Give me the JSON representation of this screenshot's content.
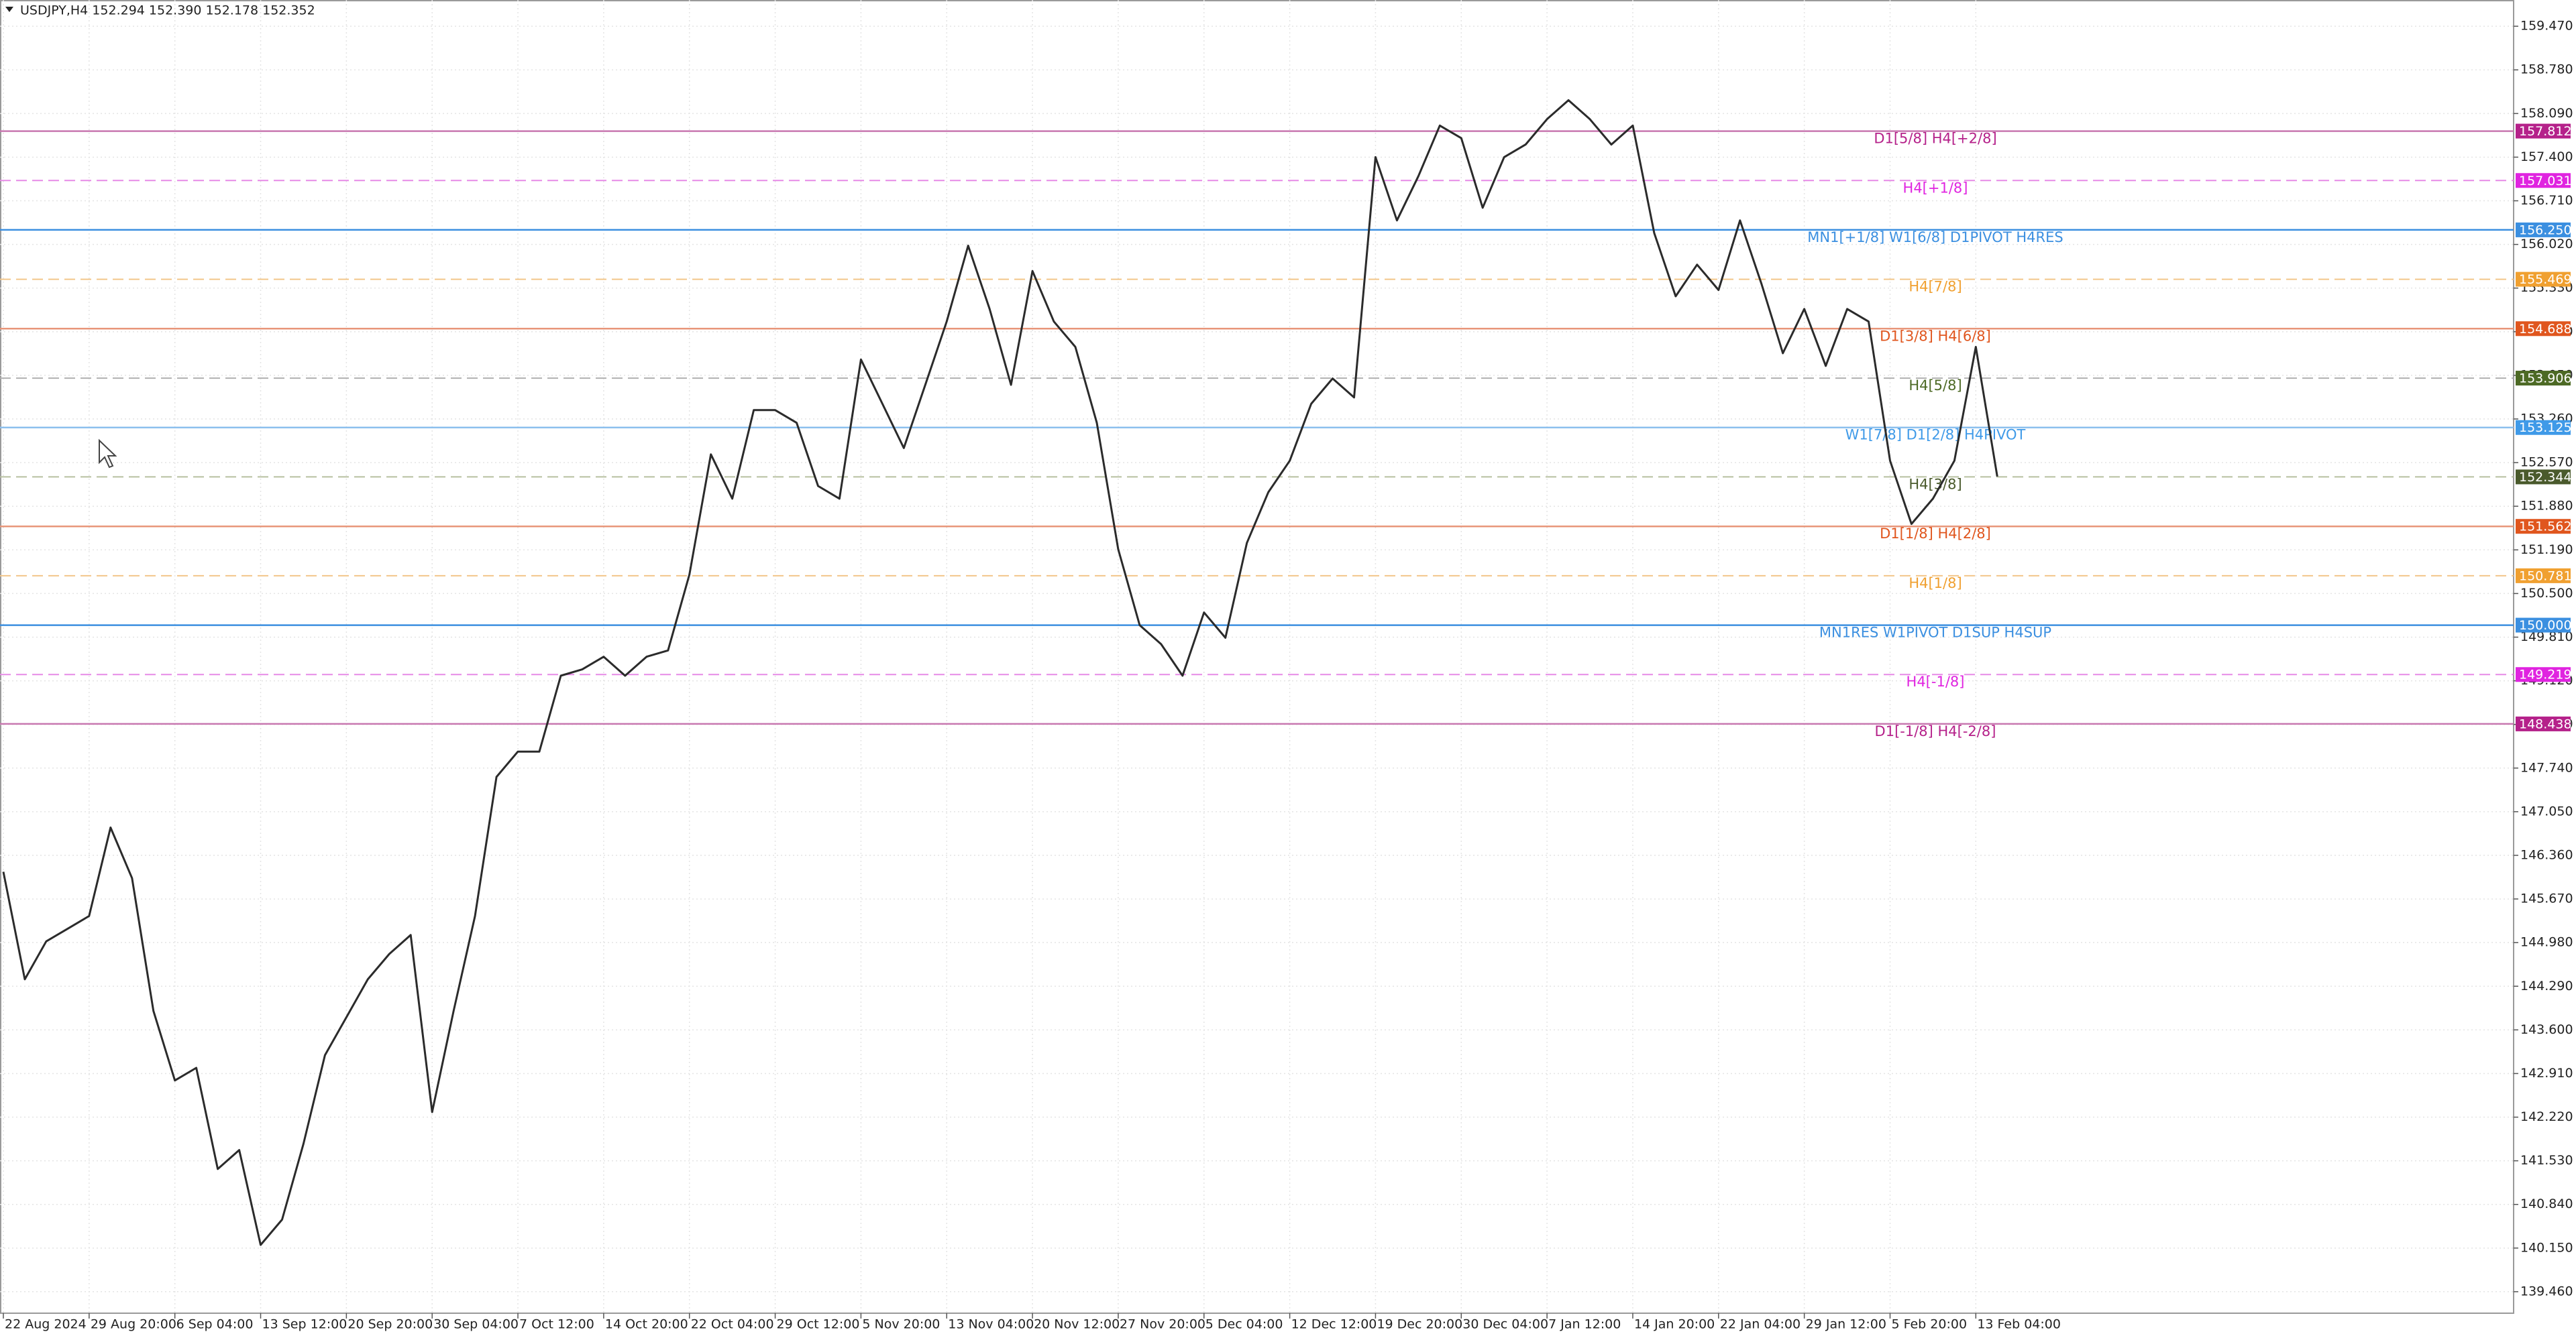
{
  "chart_data": {
    "type": "line",
    "title": "USDJPY,H4  152.294 152.390 152.178 152.352",
    "color": "#2b2b2b",
    "grid": true,
    "categories": [
      "22 Aug 2024",
      null,
      null,
      null,
      "29 Aug 20:00",
      null,
      null,
      null,
      "6 Sep 04:00",
      null,
      null,
      null,
      "13 Sep 12:00",
      null,
      null,
      null,
      "20 Sep 20:00",
      null,
      null,
      null,
      "30 Sep 04:00",
      null,
      null,
      null,
      "7 Oct 12:00",
      null,
      null,
      null,
      "14 Oct 20:00",
      null,
      null,
      null,
      "22 Oct 04:00",
      null,
      null,
      null,
      "29 Oct 12:00",
      null,
      null,
      null,
      "5 Nov 20:00",
      null,
      null,
      null,
      "13 Nov 04:00",
      null,
      null,
      null,
      "20 Nov 12:00",
      null,
      null,
      null,
      "27 Nov 20:00",
      null,
      null,
      null,
      "5 Dec 04:00",
      null,
      null,
      null,
      "12 Dec 12:00",
      null,
      null,
      null,
      "19 Dec 20:00",
      null,
      null,
      null,
      "30 Dec 04:00",
      null,
      null,
      null,
      "7 Jan 12:00",
      null,
      null,
      null,
      "14 Jan 20:00",
      null,
      null,
      null,
      "22 Jan 04:00",
      null,
      null,
      null,
      "29 Jan 12:00",
      null,
      null,
      null,
      "5 Feb 20:00",
      null,
      null,
      null,
      "13 Feb 04:00",
      null
    ],
    "values": [
      146.1,
      144.4,
      145.0,
      145.2,
      145.4,
      146.8,
      146.0,
      143.9,
      142.8,
      143.0,
      141.4,
      141.7,
      140.2,
      140.6,
      141.8,
      143.2,
      143.8,
      144.4,
      144.8,
      145.1,
      142.3,
      143.9,
      145.4,
      147.6,
      148.0,
      148.0,
      149.2,
      149.3,
      149.5,
      149.2,
      149.5,
      149.6,
      150.8,
      152.7,
      152.0,
      153.4,
      153.4,
      153.2,
      152.2,
      152.0,
      154.2,
      153.5,
      152.8,
      153.8,
      154.8,
      156.0,
      155.0,
      153.8,
      155.6,
      154.8,
      154.4,
      153.2,
      151.2,
      150.0,
      149.7,
      149.2,
      150.2,
      149.8,
      151.3,
      152.1,
      152.6,
      153.5,
      153.9,
      153.6,
      157.4,
      156.4,
      157.1,
      157.9,
      157.7,
      156.6,
      157.4,
      157.6,
      158.0,
      158.3,
      158.0,
      157.6,
      157.9,
      156.2,
      155.2,
      155.7,
      155.3,
      156.4,
      155.4,
      154.3,
      155.0,
      154.1,
      155.0,
      154.8,
      152.6,
      151.6,
      152.0,
      152.6,
      154.4,
      152.35
    ],
    "ylim": [
      139.12,
      159.885
    ],
    "yticks": [
      {
        "value": 159.47,
        "label": "159.470"
      },
      {
        "value": 158.78,
        "label": "158.780"
      },
      {
        "value": 158.09,
        "label": "158.090"
      },
      {
        "value": 157.4,
        "label": "157.400"
      },
      {
        "value": 156.71,
        "label": "156.710"
      },
      {
        "value": 156.02,
        "label": "156.020"
      },
      {
        "value": 155.33,
        "label": "155.330"
      },
      {
        "value": 154.64,
        "label": "154.640"
      },
      {
        "value": 153.95,
        "label": "153.950"
      },
      {
        "value": 153.26,
        "label": "153.260"
      },
      {
        "value": 152.57,
        "label": "152.570"
      },
      {
        "value": 151.88,
        "label": "151.880"
      },
      {
        "value": 151.19,
        "label": "151.190"
      },
      {
        "value": 150.5,
        "label": "150.500"
      },
      {
        "value": 149.81,
        "label": "149.810"
      },
      {
        "value": 149.12,
        "label": "149.120"
      },
      {
        "value": 148.43,
        "label": "148.430"
      },
      {
        "value": 147.74,
        "label": "147.740"
      },
      {
        "value": 147.05,
        "label": "147.050"
      },
      {
        "value": 146.36,
        "label": "146.360"
      },
      {
        "value": 145.67,
        "label": "145.670"
      },
      {
        "value": 144.98,
        "label": "144.980"
      },
      {
        "value": 144.29,
        "label": "144.290"
      },
      {
        "value": 143.6,
        "label": "143.600"
      },
      {
        "value": 142.91,
        "label": "142.910"
      },
      {
        "value": 142.22,
        "label": "142.220"
      },
      {
        "value": 141.53,
        "label": "141.530"
      },
      {
        "value": 140.84,
        "label": "140.840"
      },
      {
        "value": 140.15,
        "label": "140.150"
      },
      {
        "value": 139.46,
        "label": "139.460"
      }
    ],
    "levels": [
      {
        "value": 157.812,
        "value_label": "157.812",
        "label": "D1[5/8] H4[+2/8]",
        "color": "#b5218a",
        "line_color": "#c878b0",
        "dashed": false
      },
      {
        "value": 157.031,
        "value_label": "157.031",
        "label": "H4[+1/8]",
        "color": "#e024e0",
        "line_color": "#e68ae6",
        "dashed": true
      },
      {
        "value": 156.25,
        "value_label": "156.250",
        "label": "MN1[+1/8] W1[6/8] D1PIVOT H4RES",
        "color": "#3b8fe0",
        "line_color": "#3b8fe0",
        "dashed": false
      },
      {
        "value": 155.469,
        "value_label": "155.469",
        "label": "H4[7/8]",
        "color": "#f0a030",
        "line_color": "#f2c68a",
        "dashed": true
      },
      {
        "value": 154.688,
        "value_label": "154.688",
        "label": "D1[3/8] H4[6/8]",
        "color": "#e0561e",
        "line_color": "#e8967a",
        "dashed": false
      },
      {
        "value": 153.906,
        "value_label": "153.906",
        "label": "H4[5/8]",
        "color": "#4d6a25",
        "line_color": "#b0b0b0",
        "dashed": true
      },
      {
        "value": 153.125,
        "value_label": "153.125",
        "label": "W1[7/8] D1[2/8] H4PIVOT",
        "color": "#3f9ae8",
        "line_color": "#8cc0ee",
        "dashed": false
      },
      {
        "value": 152.344,
        "value_label": "152.344",
        "label": "H4[3/8]",
        "color": "#4a5a2c",
        "line_color": "#b8c0a0",
        "dashed": true
      },
      {
        "value": 151.562,
        "value_label": "151.562",
        "label": "D1[1/8] H4[2/8]",
        "color": "#e0561e",
        "line_color": "#e8967a",
        "dashed": false
      },
      {
        "value": 150.781,
        "value_label": "150.781",
        "label": "H4[1/8]",
        "color": "#f0a030",
        "line_color": "#f2c68a",
        "dashed": true
      },
      {
        "value": 150.0,
        "value_label": "150.000",
        "label": "MN1RES W1PIVOT D1SUP H4SUP",
        "color": "#3b8fe0",
        "line_color": "#3b8fe0",
        "dashed": false
      },
      {
        "value": 149.219,
        "value_label": "149.219",
        "label": "H4[-1/8]",
        "color": "#e024e0",
        "line_color": "#e68ae6",
        "dashed": true
      },
      {
        "value": 148.438,
        "value_label": "148.438",
        "label": "D1[-1/8] H4[-2/8]",
        "color": "#b5218a",
        "line_color": "#c878b0",
        "dashed": false
      }
    ]
  }
}
